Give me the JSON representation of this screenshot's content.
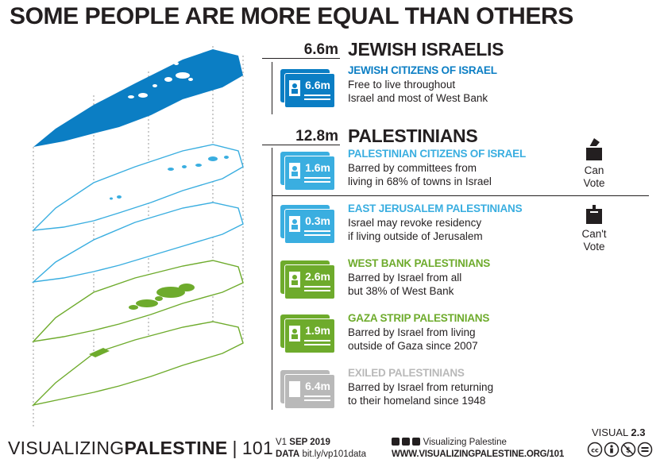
{
  "title": "SOME PEOPLE ARE MORE EQUAL THAN OTHERS",
  "colors": {
    "blue": "#0b7ec4",
    "light_blue": "#3aaee0",
    "green": "#6eab2c",
    "gray": "#b9b9b9",
    "text": "#231f20"
  },
  "jewish": {
    "count": "6.6m",
    "heading": "JEWISH ISRAELIS",
    "card": {
      "value": "6.6m",
      "title": "JEWISH CITIZENS OF ISRAEL",
      "line1": "Free to live throughout",
      "line2": "Israel and most of West Bank"
    }
  },
  "palestinians": {
    "count": "12.8m",
    "heading": "PALESTINIANS",
    "cards": [
      {
        "value": "1.6m",
        "title": "PALESTINIAN CITIZENS OF ISRAEL",
        "line1": "Barred by committees from",
        "line2": "living in 68% of towns in Israel"
      },
      {
        "value": "0.3m",
        "title": "EAST JERUSALEM PALESTINIANS",
        "line1": "Israel may revoke residency",
        "line2": "if living outside of Jerusalem"
      },
      {
        "value": "2.6m",
        "title": "WEST BANK PALESTINIANS",
        "line1": "Barred by Israel from all",
        "line2": "but 38% of West Bank"
      },
      {
        "value": "1.9m",
        "title": "GAZA STRIP PALESTINIANS",
        "line1": "Barred by Israel from living",
        "line2": "outside of Gaza since 2007"
      },
      {
        "value": "6.4m",
        "title": "EXILED PALESTINIANS",
        "line1": "Barred by Israel from returning",
        "line2": "to their homeland since 1948"
      }
    ]
  },
  "votes": {
    "can": {
      "line1": "Can",
      "line2": "Vote",
      "icon": "ballot-box-icon"
    },
    "cant": {
      "line1": "Can't",
      "line2": "Vote",
      "icon": "ballot-box-icon"
    }
  },
  "footer": {
    "brand_light": "VISUALIZING",
    "brand_bold": "PALESTINE",
    "brand_sep": "|",
    "brand_num": "101",
    "version_prefix": "V1",
    "version_date": "SEP 2019",
    "data_label": "DATA",
    "data_link": "bit.ly/vp101data",
    "social_name": "Visualizing Palestine",
    "url": "WWW.VISUALIZINGPALESTINE.ORG/101",
    "visual_label": "VISUAL",
    "visual_num": "2.3",
    "license_icons": [
      "cc-icon",
      "by-icon",
      "nc-icon",
      "nd-icon"
    ]
  }
}
